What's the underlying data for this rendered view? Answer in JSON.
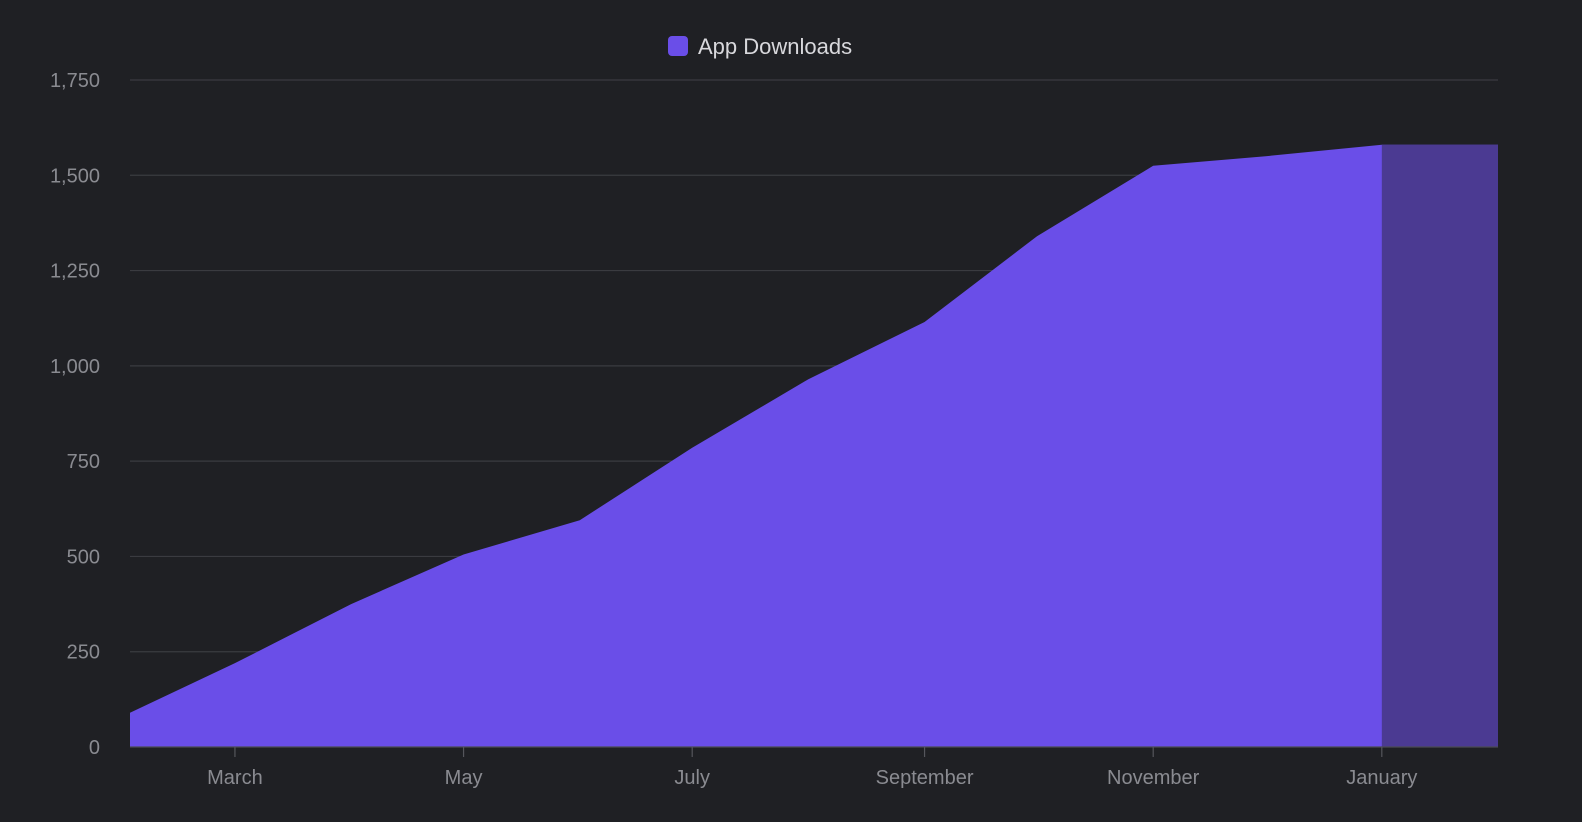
{
  "chart_data": {
    "type": "area",
    "title": "",
    "xlabel": "",
    "ylabel": "",
    "x": [
      "2023-02-01",
      "2023-03-01",
      "2023-04-01",
      "2023-05-01",
      "2023-06-01",
      "2023-07-01",
      "2023-08-01",
      "2023-09-01",
      "2023-10-01",
      "2023-11-01",
      "2023-12-01",
      "2024-01-01",
      "2024-02-01"
    ],
    "x_tick_dates": [
      "2023-03-01",
      "2023-05-01",
      "2023-07-01",
      "2023-09-01",
      "2023-11-01",
      "2024-01-01"
    ],
    "x_tick_labels": [
      "March",
      "May",
      "July",
      "September",
      "November",
      "January"
    ],
    "x_range": [
      "2023-02-01",
      "2024-02-01"
    ],
    "ylim": [
      0,
      1750
    ],
    "y_ticks": [
      0,
      250,
      500,
      750,
      1000,
      1250,
      1500,
      1750
    ],
    "y_tick_labels": [
      "0",
      "250",
      "500",
      "750",
      "1,000",
      "1,250",
      "1,500",
      "1,750"
    ],
    "series": [
      {
        "name": "App Downloads",
        "color": "#6a4ee8",
        "values": [
          90,
          220,
          375,
          505,
          595,
          785,
          965,
          1115,
          1340,
          1525,
          1550,
          1580,
          1580
        ]
      }
    ],
    "highlight": {
      "from": "2024-01-01",
      "to": "2024-02-01",
      "color": "#4b3a92"
    },
    "grid": true,
    "legend": "top-center"
  }
}
